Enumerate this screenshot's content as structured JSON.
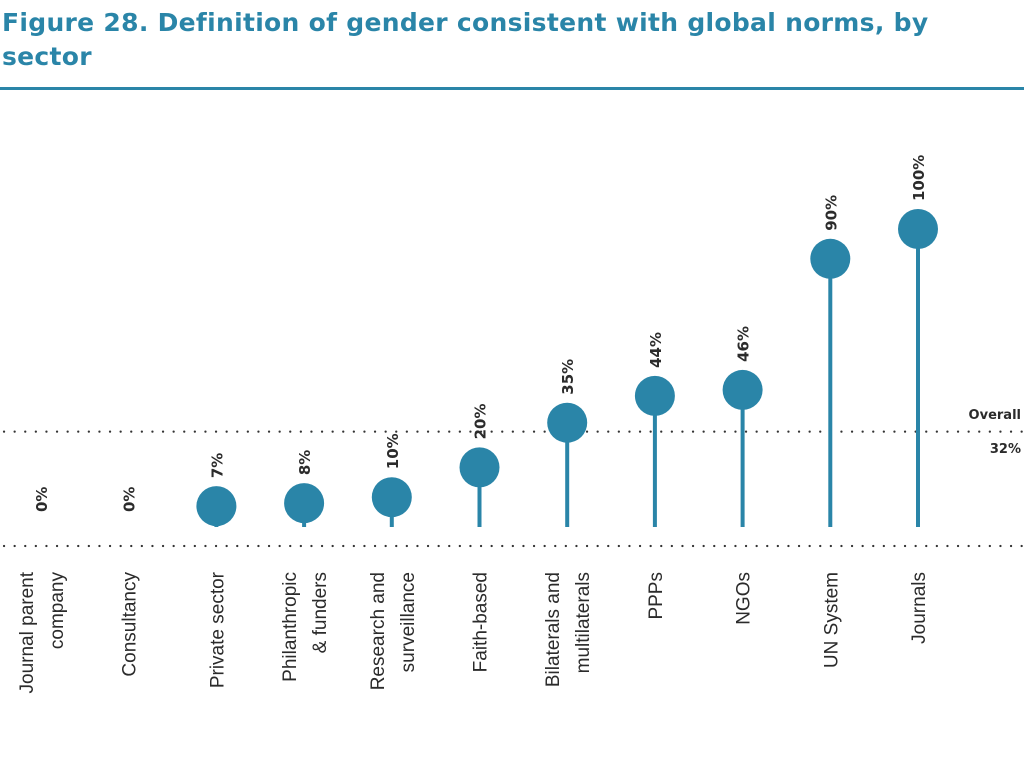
{
  "chart_data": {
    "type": "lollipop",
    "title": "Figure 28. Definition of gender consistent with global norms, by sector",
    "categories": [
      [
        "Journal parent",
        "company"
      ],
      [
        "Consultancy"
      ],
      [
        "Private sector"
      ],
      [
        "Philanthropic",
        "& funders"
      ],
      [
        "Research and",
        "surveillance"
      ],
      [
        "Faith-based"
      ],
      [
        "Bilaterals and",
        "multilaterals"
      ],
      [
        "PPPs"
      ],
      [
        "NGOs"
      ],
      [
        "UN System"
      ],
      [
        "Journals"
      ]
    ],
    "values": [
      0,
      0,
      7,
      8,
      10,
      20,
      35,
      44,
      46,
      90,
      100
    ],
    "value_labels": [
      "0%",
      "0%",
      "7%",
      "8%",
      "10%",
      "20%",
      "35%",
      "44%",
      "46%",
      "90%",
      "100%"
    ],
    "ylim": [
      0,
      100
    ],
    "reference_line": {
      "label": "Overall",
      "value": 32,
      "value_label": "32%"
    },
    "color": "#2a85a8",
    "grid": false
  }
}
